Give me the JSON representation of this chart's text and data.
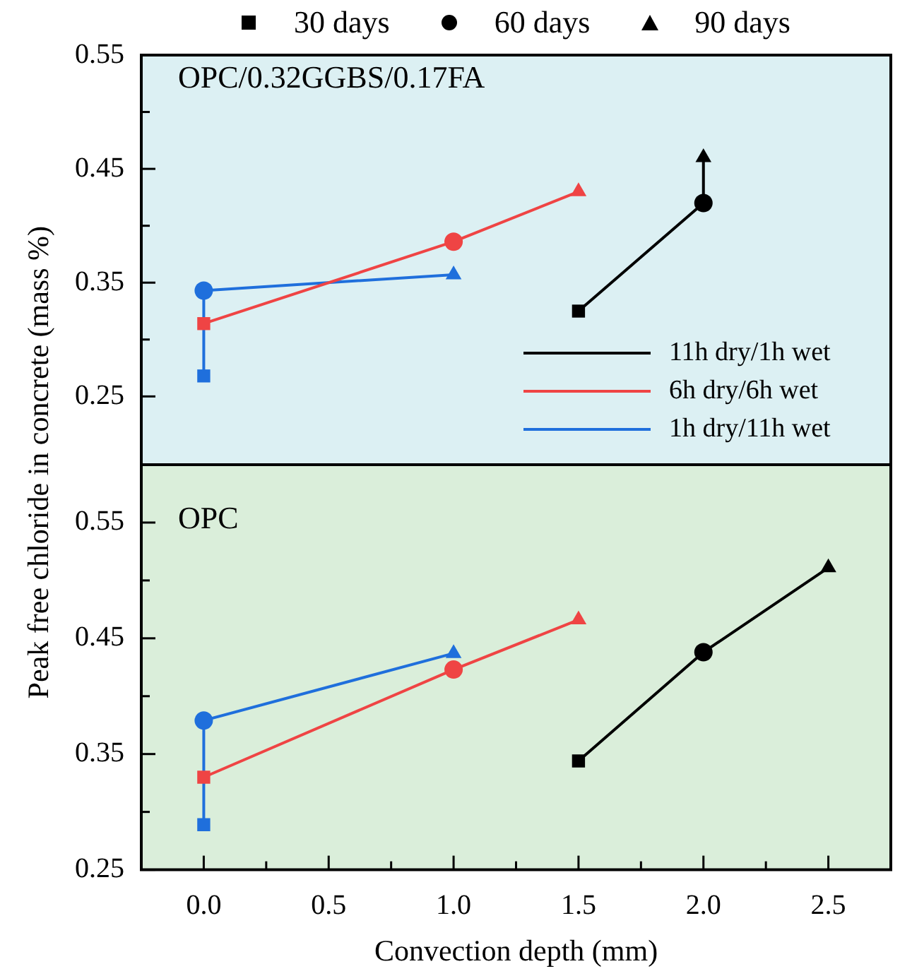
{
  "chart_data": [
    {
      "type": "line",
      "title": "OPC/0.32GGBS/0.17FA",
      "ylabel": "Peak free chloride in concrete (mass %)",
      "xlim": [
        -0.25,
        2.75
      ],
      "ylim": [
        0.19,
        0.55
      ],
      "yticks": [
        0.25,
        {
          "value": 0.3,
          "label": null
        },
        0.35,
        {
          "value": 0.4,
          "label": null
        },
        0.45,
        {
          "value": 0.5,
          "label": null
        },
        0.55
      ],
      "tick_labels": "y",
      "legend": "bottom right",
      "grid": false,
      "annotations": [
        "30 days",
        "60 days",
        "90 days"
      ],
      "series": [
        {
          "name": "11h dry/1h wet",
          "color": "#000000",
          "marker": "none",
          "x": [
            1.5,
            2.0,
            2.0
          ],
          "values": [
            0.325,
            0.42,
            0.46
          ]
        },
        {
          "name": "6h dry/6h wet",
          "color": "#ef4444",
          "marker": "none",
          "x": [
            0,
            1.0,
            1.5
          ],
          "values": [
            0.314,
            0.386,
            0.43
          ]
        },
        {
          "name": "1h dry/11h wet",
          "color": "#1f6fdc",
          "marker": "none",
          "x": [
            0,
            0,
            1.0
          ],
          "values": [
            0.268,
            0.343,
            0.357
          ]
        },
        {
          "type": "scatter",
          "marker": "square",
          "x": [
            1.5,
            0,
            0
          ],
          "values": [
            0.325,
            0.314,
            0.268
          ],
          "colors": [
            "#000000",
            "#ef4444",
            "#1f6fdc"
          ]
        },
        {
          "type": "scatter",
          "marker": "circle",
          "x": [
            2.0,
            1.0,
            0
          ],
          "values": [
            0.42,
            0.386,
            0.343
          ],
          "colors": [
            "#000000",
            "#ef4444",
            "#1f6fdc"
          ]
        },
        {
          "type": "scatter",
          "marker": "triangle",
          "x": [
            2.0,
            1.5,
            1.0
          ],
          "values": [
            0.46,
            0.43,
            0.357
          ],
          "colors": [
            "#000000",
            "#ef4444",
            "#1f6fdc"
          ]
        }
      ]
    },
    {
      "type": "line",
      "title": "OPC",
      "xlabel": "Convection depth (mm)",
      "xlim": [
        -0.25,
        2.75
      ],
      "xticks": [
        {
          "value": 0,
          "label": "0.0"
        },
        {
          "value": 0.25,
          "label": null
        },
        0.5,
        {
          "value": 0.75,
          "label": null
        },
        {
          "value": 1,
          "label": "1.0"
        },
        {
          "value": 1.25,
          "label": null
        },
        1.5,
        {
          "value": 1.75,
          "label": null
        },
        {
          "value": 2,
          "label": "2.0"
        },
        {
          "value": 2.25,
          "label": null
        },
        2.5
      ],
      "ylim": [
        0.25,
        0.6
      ],
      "yticks": [
        0.25,
        {
          "value": 0.3,
          "label": null
        },
        0.35,
        {
          "value": 0.4,
          "label": null
        },
        0.45,
        {
          "value": 0.5,
          "label": null
        },
        0.55
      ],
      "grid": false,
      "series": [
        {
          "color": "#000000",
          "marker": "none",
          "x": [
            1.5,
            2.0,
            2.5
          ],
          "values": [
            0.344,
            0.438,
            0.511
          ]
        },
        {
          "color": "#ef4444",
          "marker": "none",
          "x": [
            0,
            1.0,
            1.5
          ],
          "values": [
            0.33,
            0.423,
            0.466
          ]
        },
        {
          "color": "#1f6fdc",
          "marker": "none",
          "x": [
            0,
            0,
            1.0
          ],
          "values": [
            0.289,
            0.379,
            0.437
          ]
        },
        {
          "type": "scatter",
          "marker": "square",
          "x": [
            1.5,
            0,
            0
          ],
          "values": [
            0.344,
            0.33,
            0.289
          ],
          "colors": [
            "#000000",
            "#ef4444",
            "#1f6fdc"
          ]
        },
        {
          "type": "scatter",
          "marker": "circle",
          "x": [
            2.0,
            1.0,
            0
          ],
          "values": [
            0.438,
            0.423,
            0.379
          ],
          "colors": [
            "#000000",
            "#ef4444",
            "#1f6fdc"
          ]
        },
        {
          "type": "scatter",
          "marker": "triangle",
          "x": [
            2.5,
            1.5,
            1.0
          ],
          "values": [
            0.511,
            0.466,
            0.437
          ],
          "colors": [
            "#000000",
            "#ef4444",
            "#1f6fdc"
          ]
        }
      ]
    }
  ]
}
